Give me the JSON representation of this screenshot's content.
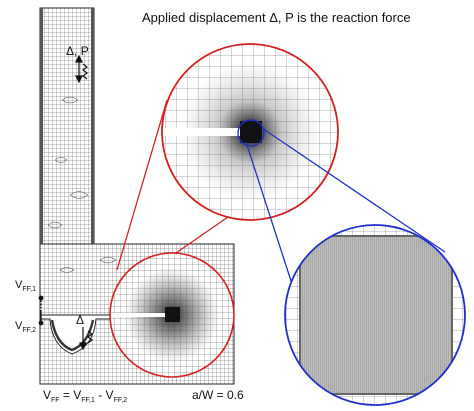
{
  "caption_top": "Applied displacement Δ, P is the reaction force",
  "load_label_top": {
    "delta": "Δ",
    "sep": ", ",
    "p": "P"
  },
  "vff1": {
    "main": "V",
    "sub": "FF,1"
  },
  "vff2": {
    "main": "V",
    "sub": "FF,2"
  },
  "delta_bottom": "Δ",
  "equation": {
    "v": "V",
    "ff": "FF",
    "eq": " = V",
    "ff1": "FF,1",
    "minus": " - V",
    "ff2": "FF,2"
  },
  "ratio": "a/W = 0.6",
  "colors": {
    "zoom1": "#d42020",
    "zoom2": "#2030c8",
    "mesh": "#3a3a3a",
    "dense": "#8a8a8a"
  }
}
